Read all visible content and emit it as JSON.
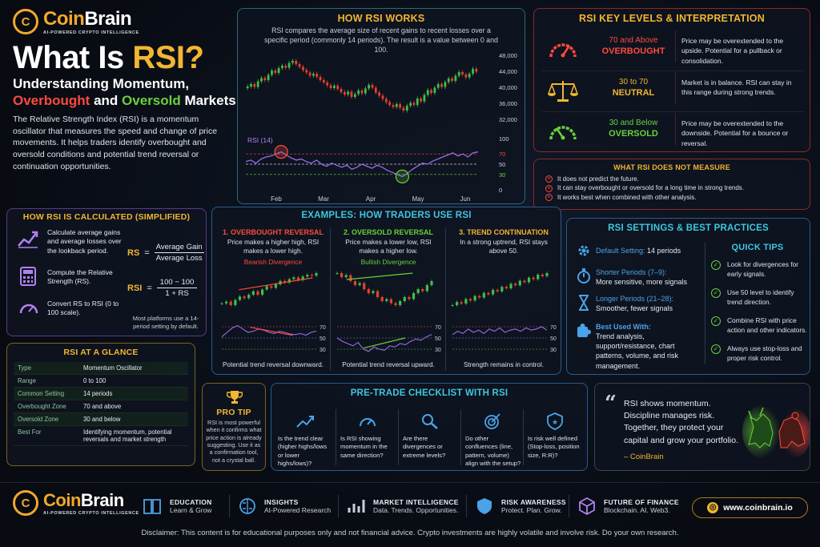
{
  "brand": {
    "name_a": "Coin",
    "name_b": "Brain",
    "tagline": "AI-POWERED CRYPTO INTELLIGENCE",
    "logo_letter": "C"
  },
  "hero": {
    "title_a": "What Is ",
    "title_b": "RSI?",
    "subtitle_1": "Understanding Momentum,",
    "subtitle_2_a": "Overbought",
    "subtitle_2_b": " and ",
    "subtitle_2_c": "Oversold",
    "subtitle_2_d": " Markets",
    "description": "The Relative Strength Index (RSI) is a momentum oscillator that measures the speed and change of price movements. It helps traders identify overbought and oversold conditions and potential trend reversal or continuation opportunities."
  },
  "how_works": {
    "title": "HOW RSI WORKS",
    "text": "RSI compares the average size of recent gains to recent losses over a specific period (commonly 14 periods). The result is a value between 0 and 100.",
    "price_ticks": [
      "48,000",
      "44,000",
      "40,000",
      "36,000",
      "32,000"
    ],
    "rsi_label": "RSI (14)",
    "rsi_ticks": [
      "100",
      "70",
      "50",
      "30",
      "0"
    ],
    "months": [
      "Feb",
      "Mar",
      "Apr",
      "May",
      "Jun"
    ]
  },
  "key_levels": {
    "title": "RSI KEY LEVELS & INTERPRETATION",
    "rows": [
      {
        "range": "70 and Above",
        "label": "OVERBOUGHT",
        "desc": "Price may be overextended to the upside. Potential for a pullback or consolidation.",
        "icon": "gauge-high-icon"
      },
      {
        "range": "30 to 70",
        "label": "NEUTRAL",
        "desc": "Market is in balance. RSI can stay in this range during strong trends.",
        "icon": "scales-icon"
      },
      {
        "range": "30 and Below",
        "label": "OVERSOLD",
        "desc": "Price may be overextended to the downside. Potential for a bounce or reversal.",
        "icon": "gauge-low-icon"
      }
    ]
  },
  "does_not": {
    "title": "WHAT RSI DOES NOT MEASURE",
    "items": [
      "It does not predict the future.",
      "It can stay overbought or oversold for a long time in strong trends.",
      "It works best when combined with other analysis."
    ]
  },
  "calculated": {
    "title": "HOW RSI IS CALCULATED (SIMPLIFIED)",
    "steps": [
      "Calculate average gains and average losses over the lookback period.",
      "Compute the Relative Strength (RS).",
      "Convert RS to RSI (0 to 100 scale)."
    ],
    "rs": "RS",
    "eq": "=",
    "rs_num": "Average Gain",
    "rs_den": "Average Loss",
    "rsi": "RSI",
    "rsi_num": "100 − 100",
    "rsi_den": "1 + RS",
    "note": "Most platforms use a 14-period setting by default."
  },
  "examples": {
    "title": "EXAMPLES: HOW TRADERS USE RSI",
    "cols": [
      {
        "heading": "1. OVERBOUGHT REVERSAL",
        "text": "Price makes a higher high, RSI makes a lower high.",
        "tag": "Bearish Divergence",
        "caption": "Potential trend reversal downward."
      },
      {
        "heading": "2. OVERSOLD REVERSAL",
        "text": "Price makes a lower low, RSI makes a higher low.",
        "tag": "Bullish Divergence",
        "caption": "Potential trend reversal upward."
      },
      {
        "heading": "3. TREND CONTINUATION",
        "text": "In a strong uptrend, RSI stays above 50.",
        "tag": "",
        "caption": "Strength remains in control."
      }
    ],
    "levels": [
      "70",
      "50",
      "30"
    ]
  },
  "settings": {
    "title": "RSI SETTINGS & BEST PRACTICES",
    "default_label": "Default Setting:",
    "default_value": " 14 periods",
    "shorter_label": "Shorter Periods (7–9):",
    "shorter_value": "More sensitive, more signals",
    "longer_label": "Longer Periods (21–28):",
    "longer_value": "Smoother, fewer signals",
    "best_label": "Best Used With:",
    "best_value": "Trend analysis, support/resistance, chart patterns, volume, and risk management."
  },
  "tips": {
    "title": "QUICK TIPS",
    "items": [
      "Look for divergences for early signals.",
      "Use 50 level to identify trend direction.",
      "Combine RSI with price action and other indicators.",
      "Always use stop-loss and proper risk control."
    ]
  },
  "glance": {
    "title": "RSI AT A GLANCE",
    "rows": [
      [
        "Type",
        "Momentum Oscillator"
      ],
      [
        "Range",
        "0 to 100"
      ],
      [
        "Common Setting",
        "14 periods"
      ],
      [
        "Overbought Zone",
        "70 and above"
      ],
      [
        "Oversold Zone",
        "30 and below"
      ],
      [
        "Best For",
        "Identifying momentum, potential reversals and market strength"
      ]
    ]
  },
  "pro_tip": {
    "title": "PRO TIP",
    "text": "RSI is most powerful when it confirms what price action is already suggesting. Use it as a confirmation tool, not a crystal ball."
  },
  "checklist": {
    "title": "PRE-TRADE CHECKLIST WITH RSI",
    "items": [
      "Is the trend clear (higher highs/lows or lower highs/lows)?",
      "Is RSI showing momentum in the same direction?",
      "Are there divergences or extreme levels?",
      "Do other confluences (line, pattern, volume) align with the setup?",
      "Is risk well defined (Stop-loss, position size, R:R)?"
    ]
  },
  "quote": {
    "text": "RSI shows momentum. Discipline manages risk. Together, they protect your capital and grow your portfolio.",
    "author": "– CoinBrain"
  },
  "footer": {
    "items": [
      {
        "a": "EDUCATION",
        "b": "Learn & Grow"
      },
      {
        "a": "INSIGHTS",
        "b": "AI-Powered Research"
      },
      {
        "a": "MARKET INTELLIGENCE",
        "b": "Data. Trends. Opportunities."
      },
      {
        "a": "RISK AWARENESS",
        "b": "Protect. Plan. Grow."
      },
      {
        "a": "FUTURE OF FINANCE",
        "b": "Blockchain. AI. Web3."
      }
    ],
    "website": "www.coinbrain.io",
    "disclaimer": "Disclaimer: This content is for educational purposes only and not financial advice. Crypto investments are highly volatile and involve risk. Do your own research."
  },
  "colors": {
    "gold": "#f2b631",
    "red": "#ff4a3d",
    "green": "#6ad13a",
    "cyan": "#3fc6e0",
    "purple": "#b082f0"
  }
}
